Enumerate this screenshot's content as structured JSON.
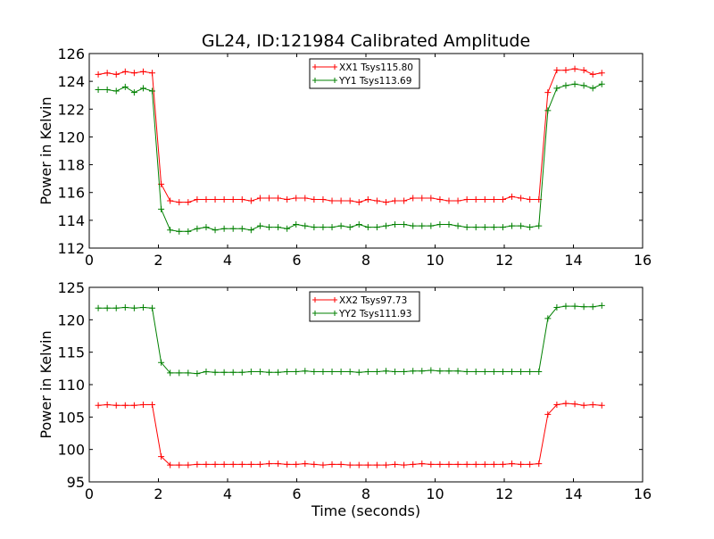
{
  "chart_data": [
    {
      "type": "line",
      "title": "GL24, ID:121984 Calibrated Amplitude",
      "xlabel": "",
      "ylabel": "Power in Kelvin",
      "xlim": [
        0,
        16
      ],
      "ylim": [
        112,
        126
      ],
      "xticks": [
        "0",
        "2",
        "4",
        "6",
        "8",
        "10",
        "12",
        "14",
        "16"
      ],
      "yticks": [
        "112",
        "114",
        "116",
        "118",
        "120",
        "122",
        "124",
        "126"
      ],
      "legend_position": "top-center",
      "grid": false,
      "x": [
        0.26,
        0.52,
        0.78,
        1.04,
        1.3,
        1.56,
        1.82,
        2.08,
        2.34,
        2.6,
        2.86,
        3.12,
        3.38,
        3.64,
        3.9,
        4.16,
        4.42,
        4.68,
        4.94,
        5.2,
        5.46,
        5.72,
        5.98,
        6.24,
        6.5,
        6.76,
        7.02,
        7.28,
        7.54,
        7.8,
        8.06,
        8.32,
        8.58,
        8.84,
        9.1,
        9.36,
        9.62,
        9.88,
        10.14,
        10.4,
        10.66,
        10.92,
        11.18,
        11.44,
        11.7,
        11.96,
        12.22,
        12.48,
        12.74,
        13.0,
        13.26,
        13.52,
        13.78,
        14.04,
        14.3,
        14.56,
        14.82
      ],
      "series": [
        {
          "name": "XX1 Tsys115.80",
          "color": "#ff0000",
          "values": [
            124.5,
            124.6,
            124.5,
            124.7,
            124.6,
            124.7,
            124.6,
            116.6,
            115.4,
            115.3,
            115.3,
            115.5,
            115.5,
            115.5,
            115.5,
            115.5,
            115.5,
            115.4,
            115.6,
            115.6,
            115.6,
            115.5,
            115.6,
            115.6,
            115.5,
            115.5,
            115.4,
            115.4,
            115.4,
            115.3,
            115.5,
            115.4,
            115.3,
            115.4,
            115.4,
            115.6,
            115.6,
            115.6,
            115.5,
            115.4,
            115.4,
            115.5,
            115.5,
            115.5,
            115.5,
            115.5,
            115.7,
            115.6,
            115.5,
            115.5,
            123.2,
            124.8,
            124.8,
            124.9,
            124.8,
            124.5,
            124.6
          ]
        },
        {
          "name": "YY1 Tsys113.69",
          "color": "#008000",
          "values": [
            123.4,
            123.4,
            123.3,
            123.6,
            123.2,
            123.5,
            123.3,
            114.8,
            113.3,
            113.2,
            113.2,
            113.4,
            113.5,
            113.3,
            113.4,
            113.4,
            113.4,
            113.3,
            113.6,
            113.5,
            113.5,
            113.4,
            113.7,
            113.6,
            113.5,
            113.5,
            113.5,
            113.6,
            113.5,
            113.7,
            113.5,
            113.5,
            113.6,
            113.7,
            113.7,
            113.6,
            113.6,
            113.6,
            113.7,
            113.7,
            113.6,
            113.5,
            113.5,
            113.5,
            113.5,
            113.5,
            113.6,
            113.6,
            113.5,
            113.6,
            121.9,
            123.5,
            123.7,
            123.8,
            123.7,
            123.5,
            123.8
          ]
        }
      ]
    },
    {
      "type": "line",
      "title": "",
      "xlabel": "Time (seconds)",
      "ylabel": "Power in Kelvin",
      "xlim": [
        0,
        16
      ],
      "ylim": [
        95,
        125
      ],
      "xticks": [
        "0",
        "2",
        "4",
        "6",
        "8",
        "10",
        "12",
        "14",
        "16"
      ],
      "yticks": [
        "95",
        "100",
        "105",
        "110",
        "115",
        "120",
        "125"
      ],
      "legend_position": "top-center",
      "grid": false,
      "x": [
        0.26,
        0.52,
        0.78,
        1.04,
        1.3,
        1.56,
        1.82,
        2.08,
        2.34,
        2.6,
        2.86,
        3.12,
        3.38,
        3.64,
        3.9,
        4.16,
        4.42,
        4.68,
        4.94,
        5.2,
        5.46,
        5.72,
        5.98,
        6.24,
        6.5,
        6.76,
        7.02,
        7.28,
        7.54,
        7.8,
        8.06,
        8.32,
        8.58,
        8.84,
        9.1,
        9.36,
        9.62,
        9.88,
        10.14,
        10.4,
        10.66,
        10.92,
        11.18,
        11.44,
        11.7,
        11.96,
        12.22,
        12.48,
        12.74,
        13.0,
        13.26,
        13.52,
        13.78,
        14.04,
        14.3,
        14.56,
        14.82
      ],
      "series": [
        {
          "name": "XX2 Tsys97.73",
          "color": "#ff0000",
          "values": [
            106.8,
            106.9,
            106.8,
            106.8,
            106.8,
            106.9,
            106.9,
            98.9,
            97.6,
            97.6,
            97.6,
            97.7,
            97.7,
            97.7,
            97.7,
            97.7,
            97.7,
            97.7,
            97.7,
            97.8,
            97.8,
            97.7,
            97.7,
            97.8,
            97.7,
            97.6,
            97.7,
            97.7,
            97.6,
            97.6,
            97.6,
            97.6,
            97.6,
            97.7,
            97.6,
            97.7,
            97.8,
            97.7,
            97.7,
            97.7,
            97.7,
            97.7,
            97.7,
            97.7,
            97.7,
            97.7,
            97.8,
            97.7,
            97.7,
            97.8,
            105.4,
            106.9,
            107.1,
            107.0,
            106.8,
            106.9,
            106.8
          ]
        },
        {
          "name": "YY2 Tsys111.93",
          "color": "#008000",
          "values": [
            121.8,
            121.8,
            121.8,
            121.9,
            121.8,
            121.9,
            121.8,
            113.4,
            111.8,
            111.8,
            111.8,
            111.7,
            112.0,
            111.9,
            111.9,
            111.9,
            111.9,
            112.0,
            112.0,
            111.9,
            111.9,
            112.0,
            112.0,
            112.1,
            112.0,
            112.0,
            112.0,
            112.0,
            112.0,
            111.9,
            112.0,
            112.0,
            112.1,
            112.0,
            112.0,
            112.1,
            112.1,
            112.2,
            112.1,
            112.1,
            112.1,
            112.0,
            112.0,
            112.0,
            112.0,
            112.0,
            112.0,
            112.0,
            112.0,
            112.0,
            120.2,
            121.9,
            122.1,
            122.1,
            122.0,
            122.0,
            122.2
          ]
        }
      ]
    }
  ]
}
